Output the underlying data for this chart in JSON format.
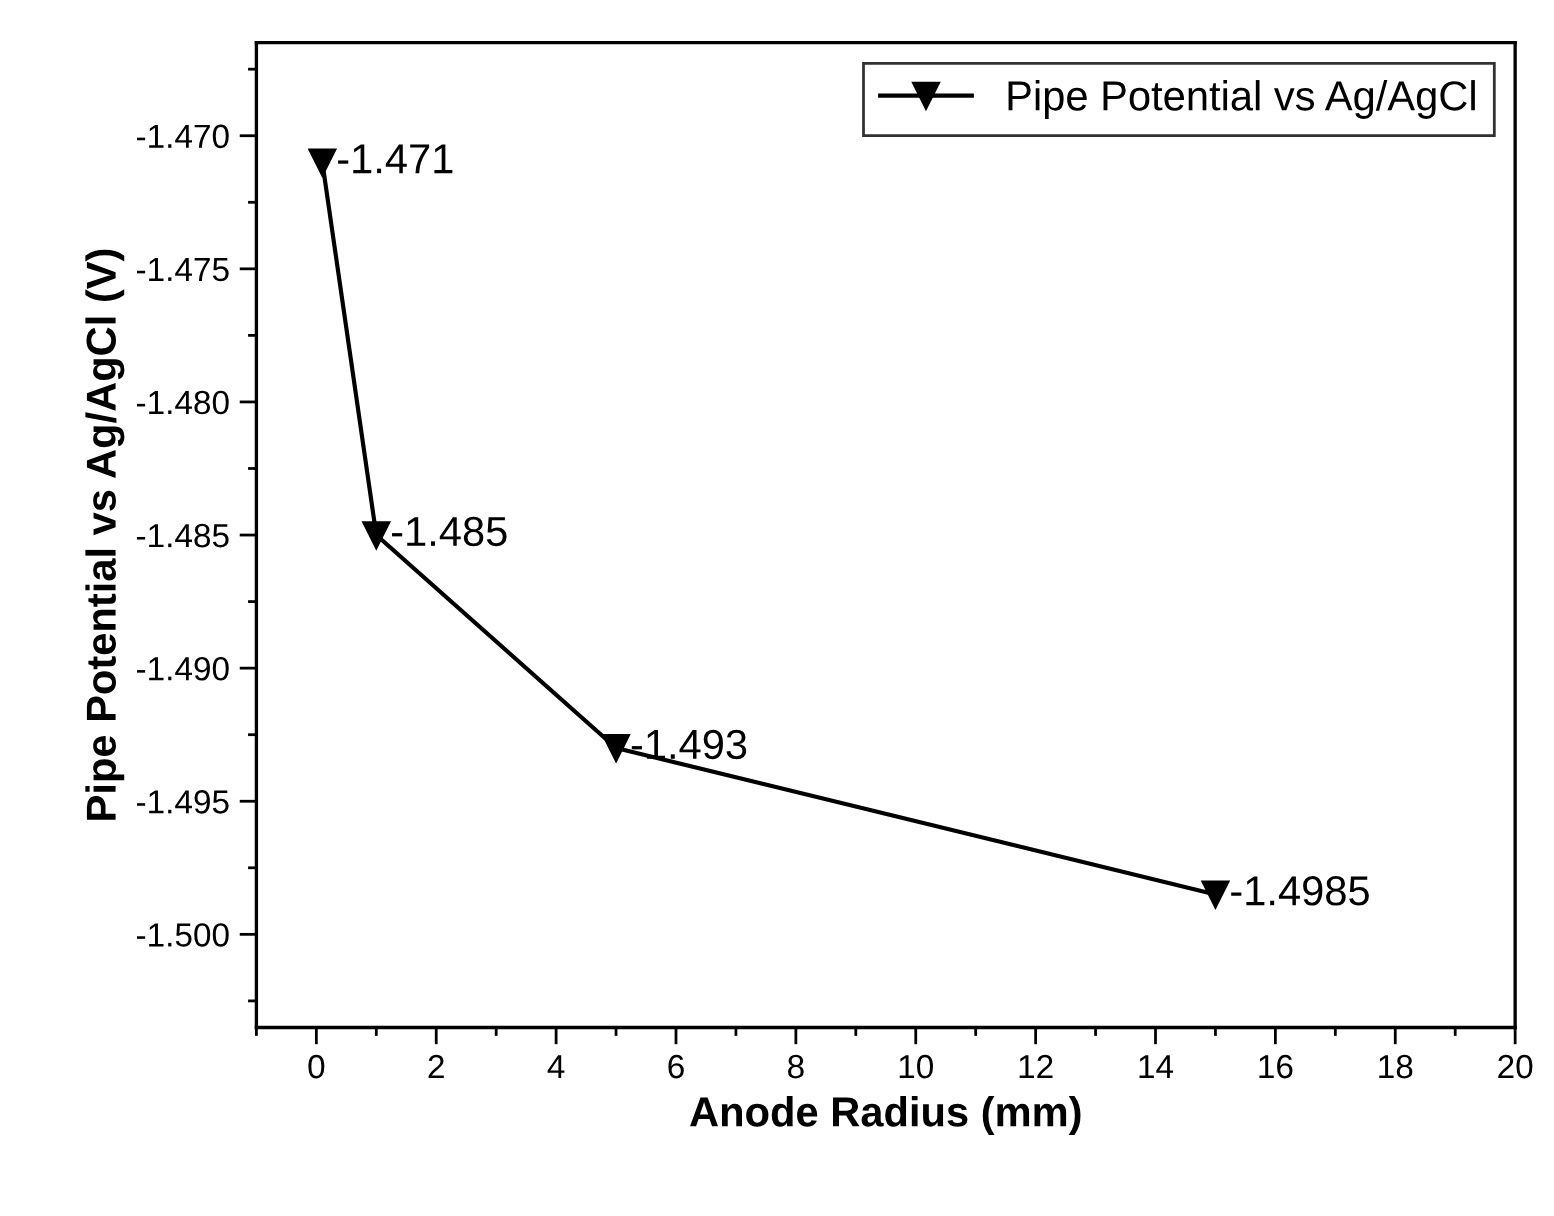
{
  "chart_data": {
    "type": "line",
    "xlabel": "Anode Radius (mm)",
    "ylabel": "Pipe Potential vs Ag/AgCl (V)",
    "x": [
      0.1,
      1,
      5,
      15
    ],
    "series": [
      {
        "name": "Pipe Potential vs Ag/AgCl",
        "color": "#000000",
        "values": [
          -1.471,
          -1.485,
          -1.493,
          -1.4985
        ]
      }
    ],
    "xlim": [
      -1,
      20
    ],
    "xticks": [
      0,
      2,
      4,
      6,
      8,
      10,
      12,
      14,
      16,
      18,
      20
    ],
    "ylim": [
      -1.5035,
      -1.4665
    ],
    "yticks": [
      {
        "value": -1.47,
        "label": "-1.470"
      },
      {
        "value": -1.475,
        "label": "-1.475"
      },
      {
        "value": -1.48,
        "label": "-1.480"
      },
      {
        "value": -1.485,
        "label": "-1.485"
      },
      {
        "value": -1.49,
        "label": "-1.490"
      },
      {
        "value": -1.495,
        "label": "-1.495"
      },
      {
        "value": -1.5,
        "label": "-1.500"
      }
    ],
    "data_labels": true,
    "legend": "top right",
    "marker": "triangle",
    "line_style": "solid",
    "grid": false
  }
}
